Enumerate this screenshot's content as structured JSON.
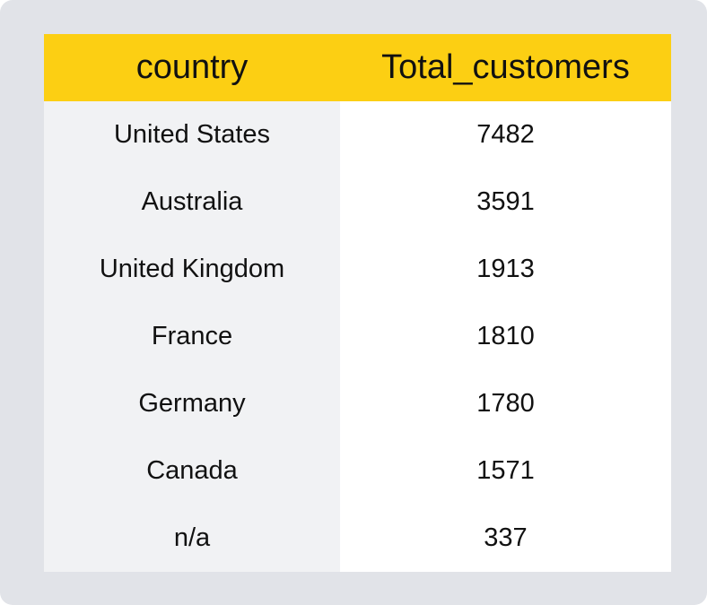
{
  "table": {
    "columns": [
      "country",
      "Total_customers"
    ],
    "rows": [
      {
        "country": "United States",
        "total_customers": "7482"
      },
      {
        "country": "Australia",
        "total_customers": "3591"
      },
      {
        "country": "United Kingdom",
        "total_customers": "1913"
      },
      {
        "country": "France",
        "total_customers": "1810"
      },
      {
        "country": "Germany",
        "total_customers": "1780"
      },
      {
        "country": "Canada",
        "total_customers": "1571"
      },
      {
        "country": "n/a",
        "total_customers": "337"
      }
    ]
  },
  "colors": {
    "header_bg": "#fccf13",
    "first_column_bg": "#f1f2f4",
    "second_column_bg": "#ffffff",
    "frame_bg": "#e1e3e8"
  }
}
